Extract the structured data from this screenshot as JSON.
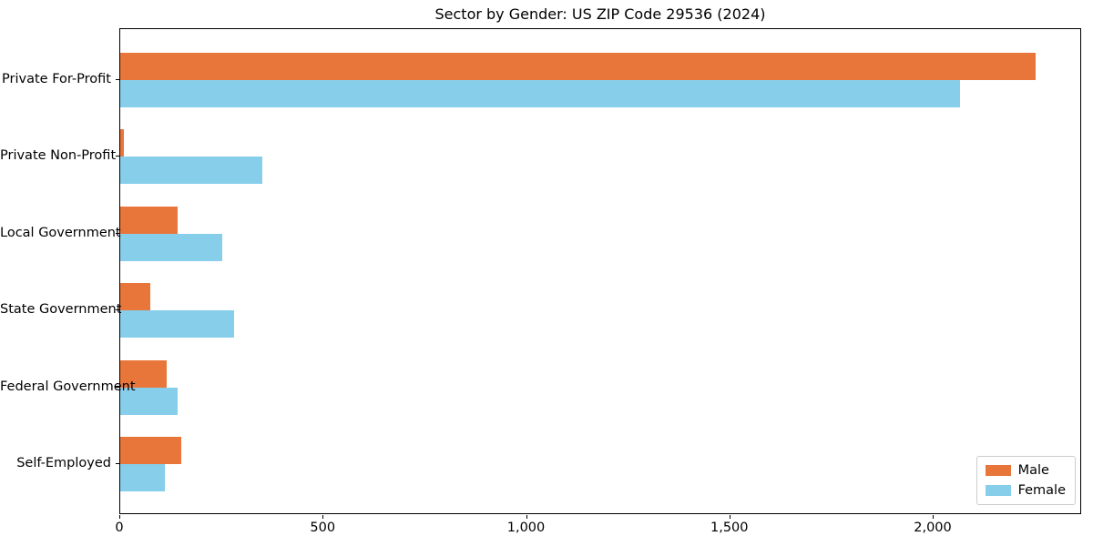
{
  "title": "Sector by Gender: US ZIP Code 29536 (2024)",
  "chart_data": {
    "type": "bar",
    "orientation": "horizontal",
    "title": "Sector by Gender: US ZIP Code 29536 (2024)",
    "xlabel": "",
    "ylabel": "",
    "categories": [
      "Private For-Profit",
      "Private Non-Profit",
      "Local Government",
      "State Government",
      "Federal Government",
      "Self-Employed"
    ],
    "series": [
      {
        "name": "Male",
        "color": "#e8763b",
        "values": [
          2250,
          8,
          140,
          75,
          115,
          150
        ]
      },
      {
        "name": "Female",
        "color": "#87ceeb",
        "values": [
          2065,
          350,
          250,
          280,
          140,
          110
        ]
      }
    ],
    "xlim": [
      0,
      2365
    ],
    "xticks": [
      0,
      500,
      1000,
      1500,
      2000
    ],
    "xtick_labels": [
      "0",
      "500",
      "1,000",
      "1,500",
      "2,000"
    ],
    "grid": false,
    "legend_position": "lower right",
    "frame": true
  },
  "legend": {
    "items": [
      {
        "label": "Male",
        "color": "#e8763b"
      },
      {
        "label": "Female",
        "color": "#87ceeb"
      }
    ]
  },
  "colors": {
    "male": "#e8763b",
    "female": "#87ceeb",
    "axis": "#000000",
    "legend_border": "#cccccc",
    "background": "#ffffff"
  }
}
